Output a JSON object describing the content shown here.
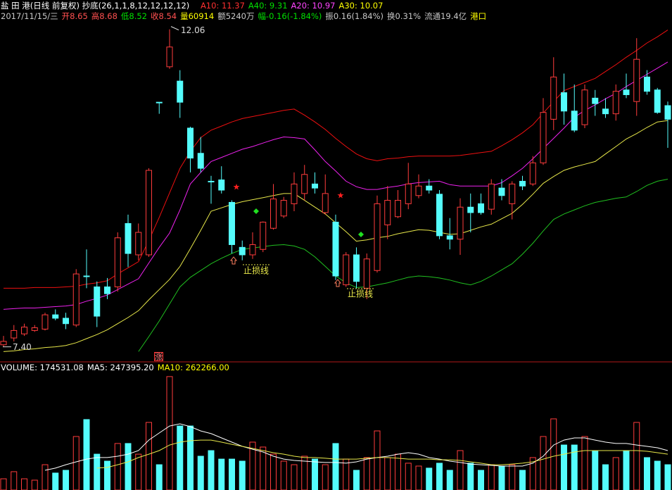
{
  "chart_data": [
    {
      "type": "candlestick",
      "title": "盐 田 港(日线 前复权) 抄底(26,1,1,8,12,12,12,12)",
      "title_color": "#ffffff",
      "header": [
        {
          "text": "A10: 11.37",
          "color": "#ff3030"
        },
        {
          "text": "A40: 9.31",
          "color": "#00e000"
        },
        {
          "text": "A20: 10.97",
          "color": "#ff44ff"
        },
        {
          "text": "A30: 10.07",
          "color": "#ffff00"
        }
      ],
      "info": [
        {
          "text": "2017/11/15/三",
          "color": "#c8c8c8"
        },
        {
          "text": "开8.65",
          "color": "#ff5050"
        },
        {
          "text": "高8.68",
          "color": "#ff5050"
        },
        {
          "text": "低8.52",
          "color": "#00e000"
        },
        {
          "text": "收8.54",
          "color": "#ff5050"
        },
        {
          "text": "量60914",
          "color": "#ffff00"
        },
        {
          "text": "额5240万",
          "color": "#c8c8c8"
        },
        {
          "text": "幅-0.16(-1.84%)",
          "color": "#00e000"
        },
        {
          "text": "振0.16(1.84%)",
          "color": "#c8c8c8"
        },
        {
          "text": "换0.31%",
          "color": "#c8c8c8"
        },
        {
          "text": "流通19.4亿",
          "color": "#c8c8c8"
        },
        {
          "text": "港口",
          "color": "#ffff00"
        }
      ],
      "categories": [
        null,
        null,
        null,
        null,
        null,
        null,
        null,
        null,
        null,
        null,
        null,
        null,
        null,
        null,
        null,
        null,
        null,
        null,
        null,
        null,
        null,
        null,
        null,
        null,
        null,
        null,
        null,
        null,
        null,
        null,
        null,
        null,
        null,
        null,
        null,
        null,
        null,
        null,
        null,
        null,
        null,
        null,
        null,
        null,
        null,
        null,
        null,
        null,
        null,
        null,
        null,
        null,
        null,
        null,
        null,
        null,
        null,
        null,
        null,
        null,
        null,
        null,
        null,
        null,
        null
      ],
      "open": [
        7.43,
        7.53,
        7.59,
        7.64,
        7.66,
        7.87,
        7.82,
        7.72,
        8.44,
        8.28,
        8.28,
        8.28,
        9.21,
        8.75,
        8.75,
        10.99,
        11.51,
        11.3,
        10.61,
        10.24,
        9.83,
        9.85,
        9.52,
        8.86,
        8.75,
        8.83,
        9.14,
        9.32,
        9.5,
        9.65,
        9.79,
        9.37,
        9.23,
        8.31,
        8.75,
        8.26,
        8.52,
        9.19,
        9.31,
        9.5,
        9.62,
        9.76,
        9.64,
        9.03,
        8.98,
        9.45,
        9.5,
        9.42,
        9.73,
        9.5,
        9.83,
        9.79,
        10.1,
        10.74,
        11.13,
        10.86,
        10.66,
        11.05,
        10.89,
        10.82,
        11.17,
        11.0,
        11.36,
        11.17,
        10.94
      ],
      "high": [
        7.56,
        7.72,
        7.74,
        7.72,
        7.9,
        7.95,
        7.9,
        8.54,
        8.83,
        8.36,
        8.41,
        9.08,
        9.34,
        9.21,
        10.02,
        10.99,
        12.06,
        11.46,
        10.63,
        10.48,
        9.91,
        10.05,
        9.55,
        8.96,
        9.08,
        9.24,
        9.79,
        9.6,
        9.96,
        10.07,
        9.96,
        9.93,
        9.34,
        8.79,
        8.86,
        8.77,
        9.62,
        9.76,
        9.7,
        10.1,
        9.93,
        9.86,
        9.7,
        9.29,
        9.58,
        9.65,
        9.65,
        9.86,
        9.86,
        9.83,
        9.91,
        10.2,
        11.05,
        11.65,
        11.41,
        11.25,
        11.25,
        11.17,
        11.05,
        11.25,
        11.41,
        11.93,
        11.46,
        11.2,
        11.0
      ],
      "low": [
        7.4,
        7.48,
        7.56,
        7.62,
        7.64,
        7.79,
        7.66,
        7.69,
        8.26,
        7.69,
        8.1,
        8.21,
        8.57,
        8.67,
        8.72,
        10.82,
        11.48,
        10.76,
        9.96,
        9.96,
        9.5,
        9.65,
        8.77,
        8.67,
        8.69,
        8.79,
        9.12,
        9.29,
        9.39,
        9.55,
        9.65,
        9.34,
        8.38,
        8.28,
        8.26,
        8.1,
        8.49,
        8.98,
        9.29,
        9.42,
        9.58,
        9.65,
        8.98,
        8.83,
        8.75,
        9.08,
        9.34,
        9.34,
        9.55,
        9.27,
        9.7,
        9.76,
        10.07,
        10.58,
        10.66,
        10.55,
        10.61,
        10.79,
        10.76,
        10.72,
        11.05,
        10.79,
        11.1,
        10.82,
        10.32
      ],
      "close": [
        7.48,
        7.64,
        7.69,
        7.68,
        7.87,
        7.82,
        7.74,
        8.47,
        8.43,
        7.85,
        8.18,
        9.0,
        8.77,
        9.08,
        9.99,
        10.98,
        11.8,
        10.99,
        10.17,
        10.02,
        9.82,
        9.7,
        8.9,
        8.75,
        8.9,
        9.23,
        9.57,
        9.55,
        9.79,
        9.93,
        9.73,
        9.65,
        8.44,
        8.75,
        8.36,
        8.69,
        9.5,
        9.55,
        9.55,
        9.79,
        9.76,
        9.7,
        9.03,
        8.98,
        9.45,
        9.37,
        9.37,
        9.79,
        9.62,
        9.79,
        9.76,
        10.1,
        10.84,
        11.36,
        10.86,
        10.58,
        11.17,
        10.97,
        10.82,
        11.15,
        11.1,
        11.62,
        11.15,
        10.84,
        10.74
      ],
      "up_color": "#ff3c3c",
      "down_color": "#54fcfc",
      "lines": [
        {
          "color": "#ee1010",
          "values": [
            8.26,
            8.26,
            8.26,
            8.27,
            8.27,
            8.27,
            8.28,
            8.29,
            8.32,
            8.34,
            8.37,
            8.47,
            8.56,
            8.65,
            8.96,
            9.3,
            9.66,
            10.02,
            10.27,
            10.47,
            10.58,
            10.64,
            10.7,
            10.75,
            10.78,
            10.81,
            10.84,
            10.87,
            10.89,
            10.8,
            10.7,
            10.59,
            10.46,
            10.34,
            10.23,
            10.16,
            10.13,
            10.16,
            10.17,
            10.19,
            10.2,
            10.2,
            10.2,
            10.2,
            10.21,
            10.23,
            10.25,
            10.27,
            10.35,
            10.44,
            10.54,
            10.66,
            10.83,
            11.0,
            11.16,
            11.22,
            11.28,
            11.34,
            11.44,
            11.54,
            11.65,
            11.75,
            11.86,
            11.95,
            12.05
          ]
        },
        {
          "color": "#ee22ee",
          "values": [
            7.95,
            7.96,
            7.97,
            7.97,
            7.98,
            7.99,
            8.0,
            8.02,
            8.07,
            8.11,
            8.16,
            8.24,
            8.32,
            8.4,
            8.63,
            8.86,
            9.07,
            9.41,
            9.79,
            9.96,
            10.12,
            10.18,
            10.24,
            10.3,
            10.34,
            10.39,
            10.44,
            10.48,
            10.47,
            10.45,
            10.29,
            10.12,
            9.98,
            9.83,
            9.75,
            9.71,
            9.71,
            9.74,
            9.76,
            9.79,
            9.81,
            9.82,
            9.83,
            9.78,
            9.76,
            9.76,
            9.76,
            9.76,
            9.81,
            9.91,
            10.02,
            10.16,
            10.31,
            10.46,
            10.61,
            10.77,
            10.87,
            10.95,
            11.04,
            11.12,
            11.22,
            11.31,
            11.4,
            11.49,
            11.58
          ]
        },
        {
          "color": "#e8e84a",
          "values": [
            7.33,
            7.34,
            7.36,
            7.37,
            7.39,
            7.4,
            7.42,
            7.46,
            7.52,
            7.58,
            7.65,
            7.74,
            7.83,
            7.93,
            8.09,
            8.24,
            8.39,
            8.58,
            8.84,
            9.11,
            9.39,
            9.44,
            9.49,
            9.53,
            9.56,
            9.59,
            9.62,
            9.65,
            9.65,
            9.55,
            9.45,
            9.35,
            9.22,
            9.09,
            8.95,
            8.97,
            9.0,
            9.02,
            9.06,
            9.09,
            9.12,
            9.11,
            9.08,
            9.05,
            9.06,
            9.11,
            9.16,
            9.2,
            9.28,
            9.36,
            9.49,
            9.64,
            9.8,
            9.9,
            9.99,
            10.04,
            10.08,
            10.12,
            10.23,
            10.34,
            10.45,
            10.53,
            10.62,
            10.7,
            10.72
          ]
        },
        {
          "color": "#20c020",
          "values": [
            null,
            null,
            null,
            null,
            null,
            null,
            null,
            null,
            null,
            null,
            null,
            null,
            null,
            7.33,
            7.55,
            7.78,
            8.03,
            8.28,
            8.42,
            8.52,
            8.62,
            8.7,
            8.77,
            8.83,
            8.85,
            8.87,
            8.89,
            8.9,
            8.88,
            8.83,
            8.72,
            8.58,
            8.44,
            8.34,
            8.27,
            8.28,
            8.31,
            8.34,
            8.38,
            8.42,
            8.44,
            8.43,
            8.41,
            8.38,
            8.34,
            8.31,
            8.36,
            8.44,
            8.53,
            8.62,
            8.76,
            8.92,
            9.1,
            9.27,
            9.35,
            9.41,
            9.47,
            9.52,
            9.55,
            9.58,
            9.6,
            9.68,
            9.77,
            9.83,
            9.86
          ]
        }
      ],
      "ylim": [
        7.2,
        12.18
      ],
      "max_label": 12.06,
      "min_label": {
        "value": 7.4,
        "label": "7.40"
      },
      "stop_loss_labels": [
        "止损线",
        "止损线"
      ],
      "flag": "涨"
    },
    {
      "type": "bar",
      "header": [
        {
          "text": "VOLUME: 174531.08",
          "color": "#ffffff"
        },
        {
          "text": "MA5: 247395.20",
          "color": "#ffffff"
        },
        {
          "text": "MA10: 262266.00",
          "color": "#ffff00"
        }
      ],
      "values": [
        82000,
        134000,
        82000,
        72000,
        185000,
        124000,
        144000,
        391000,
        515000,
        262000,
        211000,
        340000,
        340000,
        262000,
        494000,
        185000,
        829000,
        468000,
        468000,
        247000,
        288000,
        226000,
        226000,
        211000,
        350000,
        314000,
        262000,
        211000,
        185000,
        247000,
        226000,
        185000,
        340000,
        226000,
        144000,
        237000,
        432000,
        237000,
        262000,
        196000,
        175000,
        160000,
        196000,
        144000,
        288000,
        196000,
        144000,
        185000,
        175000,
        185000,
        144000,
        237000,
        391000,
        520000,
        329000,
        329000,
        391000,
        288000,
        185000,
        237000,
        288000,
        494000,
        237000,
        211000,
        185000
      ],
      "lines": [
        {
          "color": "#ffffff",
          "values": [
            null,
            null,
            null,
            null,
            144000,
            160000,
            185000,
            206000,
            226000,
            237000,
            237000,
            247000,
            262000,
            288000,
            365000,
            417000,
            468000,
            484000,
            463000,
            432000,
            412000,
            381000,
            350000,
            319000,
            298000,
            278000,
            247000,
            226000,
            216000,
            211000,
            206000,
            201000,
            201000,
            196000,
            206000,
            226000,
            237000,
            247000,
            262000,
            273000,
            262000,
            237000,
            226000,
            211000,
            201000,
            190000,
            185000,
            180000,
            175000,
            175000,
            175000,
            196000,
            247000,
            329000,
            365000,
            381000,
            381000,
            365000,
            350000,
            340000,
            340000,
            329000,
            319000,
            309000,
            288000
          ]
        },
        {
          "color": "#e8e84a",
          "values": [
            null,
            null,
            null,
            null,
            null,
            null,
            null,
            null,
            null,
            160000,
            165000,
            185000,
            206000,
            237000,
            262000,
            288000,
            329000,
            350000,
            360000,
            365000,
            365000,
            350000,
            334000,
            319000,
            304000,
            288000,
            273000,
            262000,
            247000,
            237000,
            237000,
            232000,
            226000,
            226000,
            226000,
            232000,
            237000,
            237000,
            232000,
            226000,
            226000,
            226000,
            221000,
            221000,
            216000,
            206000,
            196000,
            185000,
            185000,
            190000,
            196000,
            206000,
            226000,
            247000,
            262000,
            278000,
            288000,
            288000,
            288000,
            288000,
            288000,
            288000,
            283000,
            273000,
            262000
          ]
        }
      ],
      "ylim": [
        0,
        880000
      ]
    }
  ]
}
